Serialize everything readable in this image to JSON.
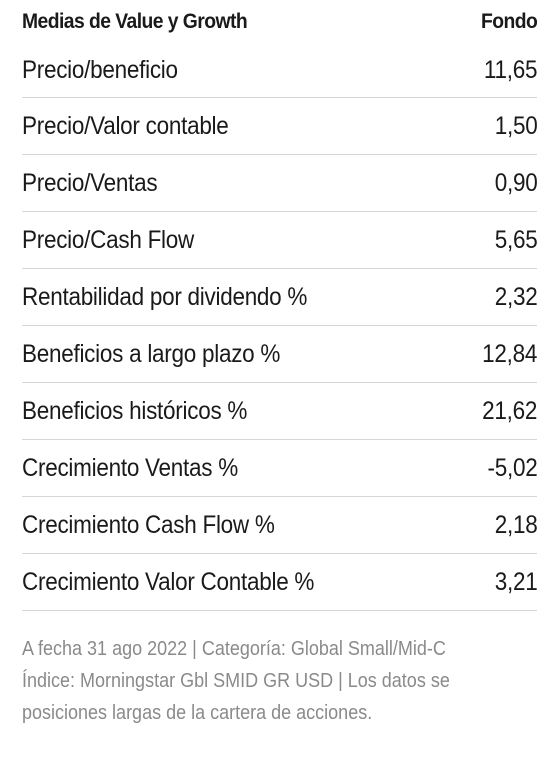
{
  "table": {
    "header_label": "Medias de Value y Growth",
    "header_fund": "Fondo",
    "rows": [
      {
        "label": "Precio/beneficio",
        "value": "11,65"
      },
      {
        "label": "Precio/Valor contable",
        "value": "1,50"
      },
      {
        "label": "Precio/Ventas",
        "value": "0,90"
      },
      {
        "label": "Precio/Cash Flow",
        "value": "5,65"
      },
      {
        "label": "Rentabilidad por dividendo %",
        "value": "2,32"
      },
      {
        "label": "Beneficios a largo plazo %",
        "value": "12,84"
      },
      {
        "label": "Beneficios históricos %",
        "value": "21,62"
      },
      {
        "label": "Crecimiento Ventas %",
        "value": "-5,02"
      },
      {
        "label": "Crecimiento Cash Flow %",
        "value": "2,18"
      },
      {
        "label": "Crecimiento Valor Contable %",
        "value": "3,21"
      }
    ]
  },
  "footer": {
    "line1": "A fecha 31 ago 2022 | Categoría: Global Small/Mid-C",
    "line2": "Índice: Morningstar Gbl SMID GR USD | Los datos se",
    "line3": "posiciones largas de la cartera de acciones."
  }
}
